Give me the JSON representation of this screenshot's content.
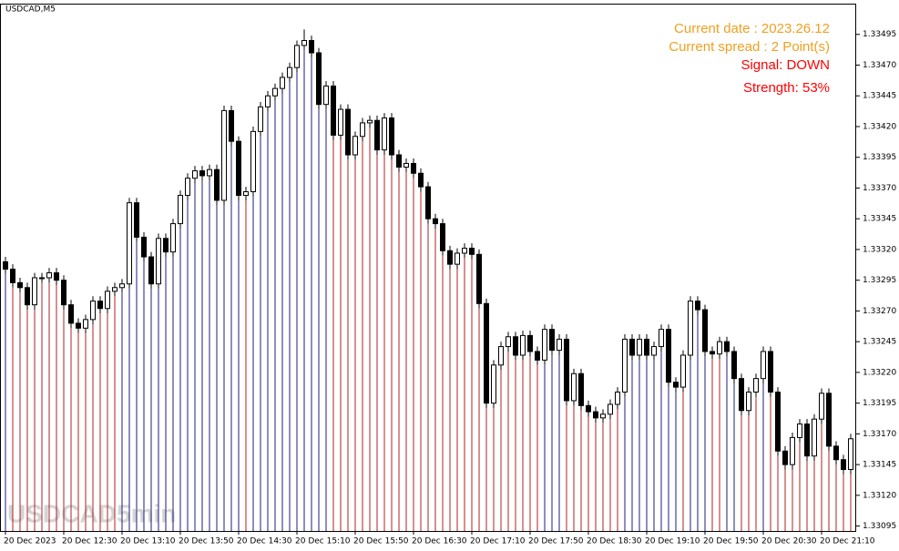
{
  "chart_data": {
    "type": "candlestick",
    "title": "USDCAD,M5",
    "categories": [
      "20 Dec 2023",
      null,
      null,
      null,
      null,
      null,
      null,
      null,
      "20 Dec 12:30",
      null,
      null,
      null,
      null,
      null,
      null,
      null,
      "20 Dec 13:10",
      null,
      null,
      null,
      null,
      null,
      null,
      null,
      "20 Dec 13:50",
      null,
      null,
      null,
      null,
      null,
      null,
      null,
      "20 Dec 14:30",
      null,
      null,
      null,
      null,
      null,
      null,
      null,
      "20 Dec 15:10",
      null,
      null,
      null,
      null,
      null,
      null,
      null,
      "20 Dec 15:50",
      null,
      null,
      null,
      null,
      null,
      null,
      null,
      "20 Dec 16:30",
      null,
      null,
      null,
      null,
      null,
      null,
      null,
      "20 Dec 17:10",
      null,
      null,
      null,
      null,
      null,
      null,
      null,
      "20 Dec 17:50",
      null,
      null,
      null,
      null,
      null,
      null,
      null,
      "20 Dec 18:30",
      null,
      null,
      null,
      null,
      null,
      null,
      null,
      "20 Dec 19:10",
      null,
      null,
      null,
      null,
      null,
      null,
      null,
      "20 Dec 19:50",
      null,
      null,
      null,
      null,
      null,
      null,
      null,
      "20 Dec 20:30",
      null,
      null,
      null,
      null,
      null,
      null,
      null,
      "20 Dec 21:10",
      null,
      null,
      null,
      null
    ],
    "open": [
      1.3331,
      1.33304,
      1.33293,
      1.33289,
      1.33275,
      1.33297,
      1.33297,
      1.33301,
      1.33295,
      1.33275,
      1.3326,
      1.33256,
      1.33263,
      1.33278,
      1.33272,
      1.33286,
      1.33289,
      1.33292,
      1.33358,
      1.3333,
      1.33314,
      1.33292,
      1.33329,
      1.33318,
      1.33341,
      1.33364,
      1.33378,
      1.33384,
      1.3338,
      1.33385,
      1.3336,
      1.33433,
      1.33408,
      1.33364,
      1.33367,
      1.33416,
      1.33436,
      1.33445,
      1.33451,
      1.3346,
      1.33468,
      1.33486,
      1.3349,
      1.3348,
      1.33438,
      1.33453,
      1.33413,
      1.33434,
      1.33397,
      1.33412,
      1.33423,
      1.33425,
      1.33401,
      1.33427,
      1.33397,
      1.33387,
      1.3339,
      1.33382,
      1.33371,
      1.33345,
      1.33341,
      1.33319,
      1.33308,
      1.33317,
      1.33321,
      1.33316,
      1.33276,
      1.33195,
      1.33226,
      1.33241,
      1.33249,
      1.33234,
      1.3325,
      1.33237,
      1.3323,
      1.33255,
      1.33238,
      1.33247,
      1.33197,
      1.33219,
      1.33193,
      1.33188,
      1.33183,
      1.33186,
      1.33194,
      1.33204,
      1.33247,
      1.33234,
      1.33247,
      1.33234,
      1.33241,
      1.33255,
      1.33212,
      1.33208,
      1.33234,
      1.33278,
      1.33271,
      1.33237,
      1.33235,
      1.33245,
      1.33237,
      1.33215,
      1.33189,
      1.33204,
      1.33215,
      1.33237,
      1.33204,
      1.33156,
      1.33145,
      1.33167,
      1.33178,
      1.33152,
      1.33182,
      1.33203,
      1.3316,
      1.33149,
      1.33141
    ],
    "high": [
      1.33314,
      1.33308,
      1.33297,
      1.33293,
      1.33301,
      1.33301,
      1.33305,
      1.33305,
      1.33299,
      1.33279,
      1.33264,
      1.33267,
      1.33282,
      1.33282,
      1.3329,
      1.33293,
      1.33296,
      1.33362,
      1.33362,
      1.33334,
      1.33318,
      1.33333,
      1.33333,
      1.33345,
      1.33368,
      1.33382,
      1.33388,
      1.33388,
      1.33389,
      1.33389,
      1.33437,
      1.33437,
      1.33412,
      1.33371,
      1.3342,
      1.3344,
      1.33449,
      1.33455,
      1.33464,
      1.33472,
      1.3349,
      1.33499,
      1.33494,
      1.33484,
      1.33457,
      1.33457,
      1.33438,
      1.33438,
      1.33416,
      1.33427,
      1.33429,
      1.33429,
      1.33431,
      1.33431,
      1.33401,
      1.33394,
      1.33394,
      1.33386,
      1.33375,
      1.33349,
      1.33345,
      1.33323,
      1.33321,
      1.33325,
      1.33325,
      1.3332,
      1.3328,
      1.3323,
      1.33245,
      1.33253,
      1.33253,
      1.33254,
      1.33254,
      1.33241,
      1.33259,
      1.33259,
      1.33251,
      1.33251,
      1.33223,
      1.33223,
      1.33197,
      1.33192,
      1.3319,
      1.33198,
      1.33208,
      1.33251,
      1.33251,
      1.33251,
      1.33251,
      1.33245,
      1.33259,
      1.33259,
      1.33216,
      1.33238,
      1.33282,
      1.33282,
      1.33275,
      1.33241,
      1.33249,
      1.33249,
      1.33241,
      1.33219,
      1.33208,
      1.33219,
      1.33241,
      1.33241,
      1.33208,
      1.3316,
      1.33171,
      1.33182,
      1.33182,
      1.33186,
      1.33207,
      1.33207,
      1.33164,
      1.33153,
      1.3317
    ],
    "low": [
      1.333,
      1.33289,
      1.33285,
      1.33271,
      1.33271,
      1.33293,
      1.33293,
      1.33291,
      1.33271,
      1.33256,
      1.33252,
      1.33252,
      1.33259,
      1.33268,
      1.33268,
      1.33282,
      1.33285,
      1.33288,
      1.33326,
      1.3331,
      1.33288,
      1.33288,
      1.33314,
      1.33314,
      1.33337,
      1.3336,
      1.33374,
      1.33376,
      1.33376,
      1.33356,
      1.33356,
      1.33404,
      1.3336,
      1.3336,
      1.33363,
      1.33412,
      1.33432,
      1.33441,
      1.33447,
      1.33456,
      1.33464,
      1.33482,
      1.33476,
      1.33434,
      1.33434,
      1.33409,
      1.33409,
      1.33393,
      1.33393,
      1.33408,
      1.33419,
      1.33397,
      1.33397,
      1.33393,
      1.33383,
      1.33383,
      1.33378,
      1.33367,
      1.33341,
      1.33337,
      1.33315,
      1.33304,
      1.33304,
      1.33313,
      1.33312,
      1.33272,
      1.33191,
      1.33191,
      1.33222,
      1.33237,
      1.3323,
      1.3323,
      1.33233,
      1.33226,
      1.33226,
      1.33234,
      1.33234,
      1.33193,
      1.33193,
      1.33189,
      1.33184,
      1.33179,
      1.33179,
      1.33182,
      1.3319,
      1.332,
      1.3323,
      1.3323,
      1.3323,
      1.3323,
      1.33237,
      1.33208,
      1.33204,
      1.33204,
      1.3323,
      1.33267,
      1.33233,
      1.33231,
      1.33231,
      1.33233,
      1.33211,
      1.33185,
      1.33185,
      1.332,
      1.33211,
      1.332,
      1.33152,
      1.33141,
      1.33141,
      1.33163,
      1.33148,
      1.33148,
      1.33178,
      1.33156,
      1.33145,
      1.33137,
      1.33137
    ],
    "close": [
      1.33304,
      1.33293,
      1.33289,
      1.33275,
      1.33297,
      1.33297,
      1.33301,
      1.33295,
      1.33275,
      1.3326,
      1.33256,
      1.33263,
      1.33278,
      1.33272,
      1.33286,
      1.33289,
      1.33292,
      1.33358,
      1.3333,
      1.33314,
      1.33292,
      1.33329,
      1.33318,
      1.33341,
      1.33364,
      1.33378,
      1.33384,
      1.3338,
      1.33385,
      1.3336,
      1.33433,
      1.33408,
      1.33364,
      1.33367,
      1.33416,
      1.33436,
      1.33445,
      1.33451,
      1.3346,
      1.33468,
      1.33486,
      1.3349,
      1.3348,
      1.33438,
      1.33453,
      1.33413,
      1.33434,
      1.33397,
      1.33412,
      1.33423,
      1.33425,
      1.33401,
      1.33427,
      1.33397,
      1.33387,
      1.3339,
      1.33382,
      1.33371,
      1.33345,
      1.33341,
      1.33319,
      1.33308,
      1.33317,
      1.33321,
      1.33316,
      1.33276,
      1.33195,
      1.33226,
      1.33241,
      1.33249,
      1.33234,
      1.3325,
      1.33237,
      1.3323,
      1.33255,
      1.33238,
      1.33247,
      1.33197,
      1.33219,
      1.33193,
      1.33188,
      1.33183,
      1.33186,
      1.33194,
      1.33204,
      1.33247,
      1.33234,
      1.33247,
      1.33234,
      1.33241,
      1.33255,
      1.33212,
      1.33208,
      1.33234,
      1.33278,
      1.33271,
      1.33237,
      1.33235,
      1.33245,
      1.33237,
      1.33215,
      1.33189,
      1.33204,
      1.33215,
      1.33237,
      1.33204,
      1.33156,
      1.33145,
      1.33167,
      1.33178,
      1.33152,
      1.33182,
      1.33203,
      1.3316,
      1.33149,
      1.33141,
      1.33166
    ],
    "ylim": [
      1.33091,
      1.3352
    ],
    "yticks": [
      1.33495,
      {
        "value": 1.3347,
        "label": "1.33470"
      },
      1.33445,
      {
        "value": 1.3342,
        "label": "1.33420"
      },
      1.33395,
      {
        "value": 1.3337,
        "label": "1.33370"
      },
      1.33345,
      {
        "value": 1.3332,
        "label": "1.33320"
      },
      1.33295,
      {
        "value": 1.3327,
        "label": "1.33270"
      },
      1.33245,
      {
        "value": 1.3322,
        "label": "1.33220"
      },
      1.33195,
      {
        "value": 1.3317,
        "label": "1.33170"
      },
      1.33145,
      {
        "value": 1.3312,
        "label": "1.33120"
      },
      1.33095
    ],
    "up_color": "#ffffff",
    "down_color": "#000000",
    "stem_colors": {
      "up": "#1c1c80",
      "down": "#b02020"
    },
    "annotations": [
      {
        "text": "Current date : 2023.26.12",
        "color": "#f0a020"
      },
      {
        "text": "Current spread : 2 Point(s)",
        "color": "#f0a020"
      },
      {
        "text": "Signal: DOWN",
        "color": "#ff0000"
      },
      {
        "text": "Strength: 53%",
        "color": "#ff0000"
      }
    ],
    "watermark": [
      "USDCAD",
      "5min"
    ]
  }
}
